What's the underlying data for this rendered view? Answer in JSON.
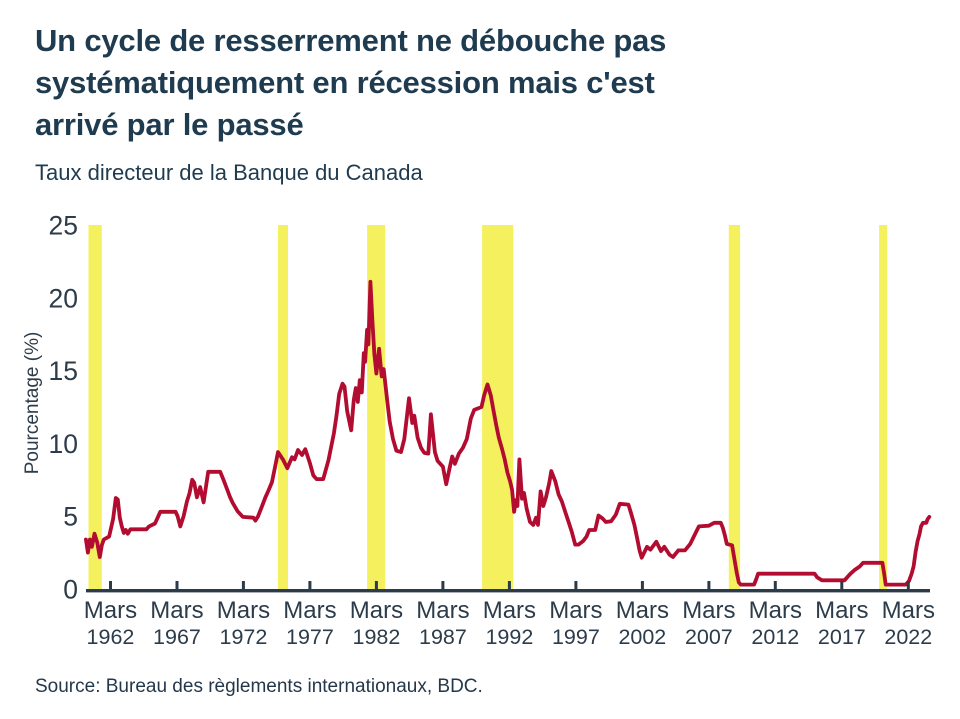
{
  "header": {
    "title": "Un cycle de resserrement ne débouche pas\nsystématiquement en récession mais c'est\narrivé par le passé",
    "subtitle": "Taux directeur de la Banque du Canada"
  },
  "footer": {
    "source": "Source: Bureau des règlements internationaux, BDC."
  },
  "chart_data": {
    "type": "line",
    "title": "Taux directeur de la Banque du Canada",
    "xlabel": "",
    "ylabel": "Pourcentage (%)",
    "ylim": [
      0,
      25
    ],
    "xlim": [
      1960.16,
      2023.63
    ],
    "grid": false,
    "legend": "none",
    "y_ticks": [
      0,
      5,
      10,
      15,
      20,
      25
    ],
    "x_tick_month_label": "Mars",
    "x_tick_years": [
      1962,
      1967,
      1972,
      1977,
      1982,
      1987,
      1992,
      1997,
      2002,
      2007,
      2012,
      2017,
      2022
    ],
    "colors": {
      "line": "#b30c31",
      "recession_band": "#f5f05e",
      "axis": "#2c3b48",
      "text": "#2c3c4a",
      "title_text": "#1e3b50"
    },
    "recession_bands": [
      [
        1960.35,
        1961.35
      ],
      [
        1974.6,
        1975.35
      ],
      [
        1981.3,
        1982.65
      ],
      [
        1989.95,
        1992.3
      ],
      [
        2008.5,
        2009.35
      ],
      [
        2019.8,
        2020.4
      ]
    ],
    "series": [
      {
        "name": "Taux directeur",
        "points": [
          [
            1960.15,
            3.4
          ],
          [
            1960.3,
            2.5
          ],
          [
            1960.45,
            3.4
          ],
          [
            1960.6,
            2.9
          ],
          [
            1960.8,
            3.8
          ],
          [
            1961.0,
            3.2
          ],
          [
            1961.2,
            2.2
          ],
          [
            1961.35,
            3.0
          ],
          [
            1961.5,
            3.4
          ],
          [
            1961.9,
            3.6
          ],
          [
            1962.2,
            4.8
          ],
          [
            1962.4,
            6.25
          ],
          [
            1962.55,
            6.15
          ],
          [
            1962.7,
            4.9
          ],
          [
            1962.85,
            4.3
          ],
          [
            1963.0,
            3.85
          ],
          [
            1963.15,
            4.05
          ],
          [
            1963.3,
            3.8
          ],
          [
            1963.5,
            4.1
          ],
          [
            1964.7,
            4.1
          ],
          [
            1964.9,
            4.3
          ],
          [
            1965.35,
            4.5
          ],
          [
            1965.75,
            5.3
          ],
          [
            1966.9,
            5.3
          ],
          [
            1967.05,
            5.0
          ],
          [
            1967.25,
            4.3
          ],
          [
            1967.5,
            5.0
          ],
          [
            1967.75,
            6.0
          ],
          [
            1967.95,
            6.6
          ],
          [
            1968.15,
            7.5
          ],
          [
            1968.3,
            7.3
          ],
          [
            1968.5,
            6.3
          ],
          [
            1968.75,
            7.0
          ],
          [
            1969.0,
            5.95
          ],
          [
            1969.35,
            8.05
          ],
          [
            1970.25,
            8.05
          ],
          [
            1970.5,
            7.5
          ],
          [
            1970.75,
            6.9
          ],
          [
            1971.0,
            6.3
          ],
          [
            1971.2,
            5.9
          ],
          [
            1971.55,
            5.35
          ],
          [
            1971.95,
            4.95
          ],
          [
            1972.75,
            4.9
          ],
          [
            1972.9,
            4.7
          ],
          [
            1973.1,
            5.0
          ],
          [
            1973.4,
            5.7
          ],
          [
            1973.65,
            6.3
          ],
          [
            1973.9,
            6.8
          ],
          [
            1974.15,
            7.35
          ],
          [
            1974.4,
            8.5
          ],
          [
            1974.6,
            9.4
          ],
          [
            1975.0,
            8.85
          ],
          [
            1975.3,
            8.3
          ],
          [
            1975.65,
            9.05
          ],
          [
            1975.85,
            8.9
          ],
          [
            1976.1,
            9.55
          ],
          [
            1976.4,
            9.2
          ],
          [
            1976.65,
            9.6
          ],
          [
            1977.0,
            8.65
          ],
          [
            1977.25,
            7.8
          ],
          [
            1977.5,
            7.55
          ],
          [
            1978.0,
            7.55
          ],
          [
            1978.4,
            8.85
          ],
          [
            1978.8,
            10.7
          ],
          [
            1979.0,
            11.9
          ],
          [
            1979.2,
            13.4
          ],
          [
            1979.45,
            14.1
          ],
          [
            1979.6,
            13.9
          ],
          [
            1979.8,
            12.2
          ],
          [
            1980.1,
            10.9
          ],
          [
            1980.3,
            13.0
          ],
          [
            1980.45,
            13.8
          ],
          [
            1980.6,
            12.85
          ],
          [
            1980.75,
            14.35
          ],
          [
            1980.9,
            13.5
          ],
          [
            1981.05,
            16.2
          ],
          [
            1981.15,
            15.6
          ],
          [
            1981.3,
            17.8
          ],
          [
            1981.4,
            16.8
          ],
          [
            1981.55,
            21.1
          ],
          [
            1981.7,
            18.4
          ],
          [
            1981.85,
            16.1
          ],
          [
            1982.0,
            14.8
          ],
          [
            1982.2,
            16.5
          ],
          [
            1982.4,
            14.6
          ],
          [
            1982.55,
            15.1
          ],
          [
            1982.8,
            13.0
          ],
          [
            1983.0,
            11.5
          ],
          [
            1983.25,
            10.3
          ],
          [
            1983.5,
            9.5
          ],
          [
            1983.85,
            9.4
          ],
          [
            1984.1,
            10.3
          ],
          [
            1984.45,
            13.1
          ],
          [
            1984.7,
            11.4
          ],
          [
            1984.85,
            11.9
          ],
          [
            1985.1,
            10.4
          ],
          [
            1985.35,
            9.7
          ],
          [
            1985.6,
            9.35
          ],
          [
            1985.9,
            9.3
          ],
          [
            1986.1,
            12.0
          ],
          [
            1986.4,
            9.4
          ],
          [
            1986.6,
            8.8
          ],
          [
            1987.0,
            8.4
          ],
          [
            1987.25,
            7.2
          ],
          [
            1987.5,
            8.3
          ],
          [
            1987.7,
            9.1
          ],
          [
            1987.9,
            8.6
          ],
          [
            1988.2,
            9.3
          ],
          [
            1988.5,
            9.7
          ],
          [
            1988.8,
            10.3
          ],
          [
            1989.1,
            11.7
          ],
          [
            1989.35,
            12.3
          ],
          [
            1989.9,
            12.5
          ],
          [
            1990.1,
            13.3
          ],
          [
            1990.35,
            14.05
          ],
          [
            1990.6,
            13.3
          ],
          [
            1990.8,
            12.3
          ],
          [
            1991.0,
            11.3
          ],
          [
            1991.2,
            10.4
          ],
          [
            1991.45,
            9.6
          ],
          [
            1991.65,
            8.9
          ],
          [
            1991.85,
            8.0
          ],
          [
            1992.05,
            7.4
          ],
          [
            1992.2,
            6.8
          ],
          [
            1992.35,
            5.3
          ],
          [
            1992.5,
            6.1
          ],
          [
            1992.6,
            5.7
          ],
          [
            1992.75,
            8.9
          ],
          [
            1992.95,
            6.2
          ],
          [
            1993.1,
            6.6
          ],
          [
            1993.3,
            5.5
          ],
          [
            1993.55,
            4.6
          ],
          [
            1993.8,
            4.4
          ],
          [
            1994.0,
            4.9
          ],
          [
            1994.15,
            4.4
          ],
          [
            1994.35,
            6.7
          ],
          [
            1994.55,
            5.7
          ],
          [
            1994.75,
            6.3
          ],
          [
            1995.0,
            7.3
          ],
          [
            1995.15,
            8.1
          ],
          [
            1995.45,
            7.4
          ],
          [
            1995.7,
            6.5
          ],
          [
            1995.95,
            6.0
          ],
          [
            1996.2,
            5.3
          ],
          [
            1996.45,
            4.6
          ],
          [
            1996.7,
            3.9
          ],
          [
            1996.95,
            3.05
          ],
          [
            1997.2,
            3.05
          ],
          [
            1997.55,
            3.3
          ],
          [
            1997.8,
            3.6
          ],
          [
            1998.0,
            4.05
          ],
          [
            1998.45,
            4.05
          ],
          [
            1998.7,
            5.05
          ],
          [
            1999.0,
            4.85
          ],
          [
            1999.25,
            4.6
          ],
          [
            1999.65,
            4.65
          ],
          [
            2000.0,
            5.1
          ],
          [
            2000.3,
            5.85
          ],
          [
            2000.95,
            5.8
          ],
          [
            2001.15,
            5.2
          ],
          [
            2001.4,
            4.4
          ],
          [
            2001.6,
            3.5
          ],
          [
            2001.8,
            2.6
          ],
          [
            2001.95,
            2.15
          ],
          [
            2002.35,
            2.9
          ],
          [
            2002.6,
            2.7
          ],
          [
            2003.05,
            3.25
          ],
          [
            2003.4,
            2.6
          ],
          [
            2003.65,
            2.9
          ],
          [
            2004.05,
            2.35
          ],
          [
            2004.3,
            2.2
          ],
          [
            2004.7,
            2.65
          ],
          [
            2005.2,
            2.65
          ],
          [
            2005.6,
            3.1
          ],
          [
            2006.0,
            3.85
          ],
          [
            2006.25,
            4.3
          ],
          [
            2007.0,
            4.35
          ],
          [
            2007.4,
            4.55
          ],
          [
            2007.9,
            4.55
          ],
          [
            2008.05,
            4.2
          ],
          [
            2008.2,
            3.7
          ],
          [
            2008.35,
            3.1
          ],
          [
            2008.75,
            3.0
          ],
          [
            2008.95,
            1.9
          ],
          [
            2009.1,
            1.1
          ],
          [
            2009.25,
            0.45
          ],
          [
            2009.4,
            0.3
          ],
          [
            2010.4,
            0.3
          ],
          [
            2010.55,
            0.65
          ],
          [
            2010.7,
            1.05
          ],
          [
            2014.95,
            1.05
          ],
          [
            2015.15,
            0.8
          ],
          [
            2015.5,
            0.6
          ],
          [
            2017.2,
            0.6
          ],
          [
            2017.45,
            0.85
          ],
          [
            2017.65,
            1.05
          ],
          [
            2017.95,
            1.3
          ],
          [
            2018.35,
            1.55
          ],
          [
            2018.6,
            1.8
          ],
          [
            2020.05,
            1.8
          ],
          [
            2020.2,
            0.95
          ],
          [
            2020.3,
            0.3
          ],
          [
            2021.8,
            0.3
          ],
          [
            2022.05,
            0.55
          ],
          [
            2022.25,
            1.05
          ],
          [
            2022.4,
            1.55
          ],
          [
            2022.55,
            2.55
          ],
          [
            2022.7,
            3.3
          ],
          [
            2022.85,
            3.8
          ],
          [
            2022.95,
            4.3
          ],
          [
            2023.1,
            4.55
          ],
          [
            2023.35,
            4.55
          ],
          [
            2023.45,
            4.8
          ],
          [
            2023.58,
            4.95
          ]
        ]
      }
    ]
  }
}
